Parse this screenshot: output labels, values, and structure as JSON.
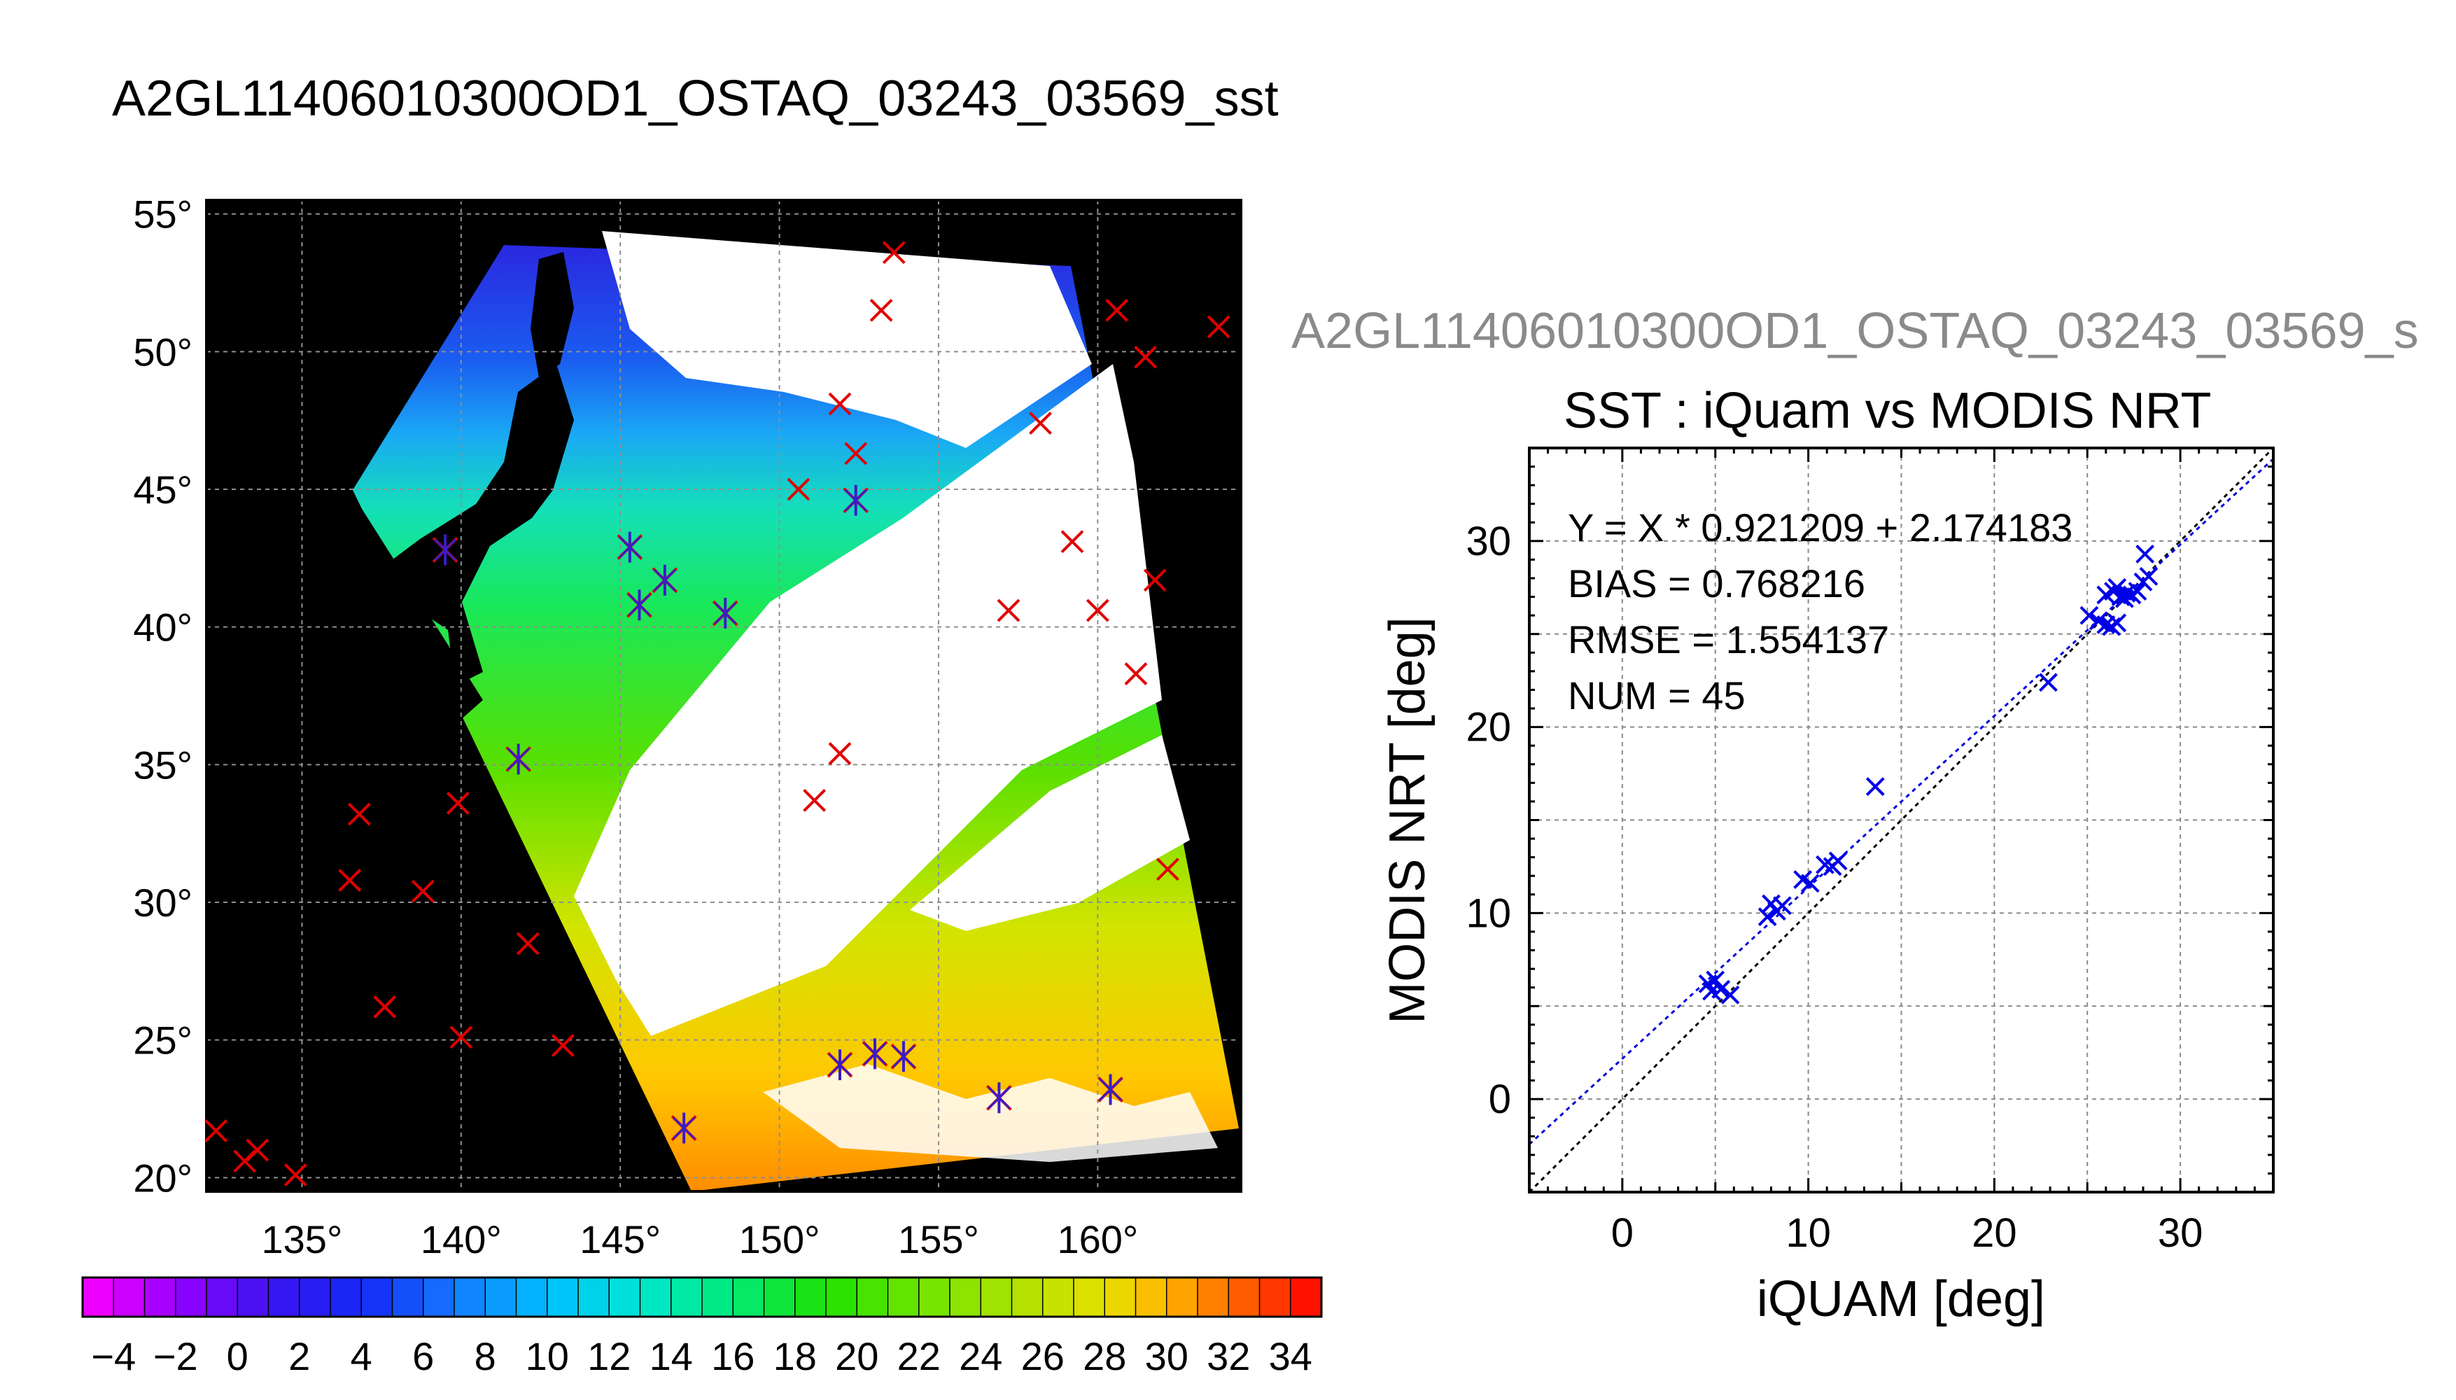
{
  "page_title": "A2GL11406010300OD1_OSTAQ_03243_03569_sst",
  "ghost_title": "A2GL11406010300OD1_OSTAQ_03243_03569_s",
  "chart_data": [
    {
      "type": "map",
      "title": "A2GL11406010300OD1_OSTAQ_03243_03569_sst",
      "lon_range": [
        132,
        164.5
      ],
      "lat_range": [
        19.5,
        55.5
      ],
      "lon_ticks": [
        135,
        140,
        145,
        150,
        155,
        160
      ],
      "lat_ticks": [
        20,
        25,
        30,
        35,
        40,
        45,
        50,
        55
      ],
      "lon_tick_labels": [
        "135°",
        "140°",
        "145°",
        "150°",
        "155°",
        "160°"
      ],
      "lat_tick_labels": [
        "20°",
        "25°",
        "30°",
        "35°",
        "40°",
        "45°",
        "50°",
        "55°"
      ],
      "grid": true,
      "matched_points": [
        {
          "lon": 139.5,
          "lat": 42.8
        },
        {
          "lon": 145.3,
          "lat": 42.9
        },
        {
          "lon": 145.6,
          "lat": 40.8
        },
        {
          "lon": 146.4,
          "lat": 41.7
        },
        {
          "lon": 148.3,
          "lat": 40.5
        },
        {
          "lon": 141.8,
          "lat": 35.2
        },
        {
          "lon": 152.4,
          "lat": 44.6
        },
        {
          "lon": 147.0,
          "lat": 21.8
        },
        {
          "lon": 151.9,
          "lat": 24.1
        },
        {
          "lon": 153.0,
          "lat": 24.5
        },
        {
          "lon": 153.9,
          "lat": 24.4
        },
        {
          "lon": 156.9,
          "lat": 22.9
        },
        {
          "lon": 160.4,
          "lat": 23.2
        }
      ],
      "unmatched_points": [
        {
          "lon": 153.6,
          "lat": 53.6
        },
        {
          "lon": 153.2,
          "lat": 51.5
        },
        {
          "lon": 160.6,
          "lat": 51.5
        },
        {
          "lon": 163.8,
          "lat": 50.9
        },
        {
          "lon": 161.5,
          "lat": 49.8
        },
        {
          "lon": 151.9,
          "lat": 48.1
        },
        {
          "lon": 158.2,
          "lat": 47.4
        },
        {
          "lon": 152.4,
          "lat": 46.3
        },
        {
          "lon": 150.6,
          "lat": 45.0
        },
        {
          "lon": 159.2,
          "lat": 43.1
        },
        {
          "lon": 161.8,
          "lat": 41.7
        },
        {
          "lon": 157.2,
          "lat": 40.6
        },
        {
          "lon": 160.0,
          "lat": 40.6
        },
        {
          "lon": 161.2,
          "lat": 38.3
        },
        {
          "lon": 151.9,
          "lat": 35.4
        },
        {
          "lon": 151.1,
          "lat": 33.7
        },
        {
          "lon": 136.8,
          "lat": 33.2
        },
        {
          "lon": 139.9,
          "lat": 33.6
        },
        {
          "lon": 162.2,
          "lat": 31.2
        },
        {
          "lon": 136.5,
          "lat": 30.8
        },
        {
          "lon": 138.8,
          "lat": 30.4
        },
        {
          "lon": 142.1,
          "lat": 28.5
        },
        {
          "lon": 137.6,
          "lat": 26.2
        },
        {
          "lon": 140.0,
          "lat": 25.1
        },
        {
          "lon": 143.2,
          "lat": 24.8
        },
        {
          "lon": 132.3,
          "lat": 21.7
        },
        {
          "lon": 133.6,
          "lat": 21.0
        },
        {
          "lon": 133.2,
          "lat": 20.6
        },
        {
          "lon": 134.8,
          "lat": 20.1
        }
      ]
    },
    {
      "type": "colorbar",
      "min": -5,
      "max": 35,
      "step": 2,
      "tick_labels": [
        "−4",
        "−2",
        "0",
        "2",
        "4",
        "6",
        "8",
        "10",
        "12",
        "14",
        "16",
        "18",
        "20",
        "22",
        "24",
        "26",
        "28",
        "30",
        "32",
        "34"
      ]
    },
    {
      "type": "scatter",
      "title": "SST : iQuam vs MODIS NRT",
      "xlabel": "iQUAM [deg]",
      "ylabel": "MODIS NRT [deg]",
      "xlim": [
        -5,
        35
      ],
      "ylim": [
        -5,
        35
      ],
      "xticks": [
        0,
        10,
        20,
        30
      ],
      "yticks": [
        0,
        10,
        20,
        30
      ],
      "grid": true,
      "stats": [
        "Y = X * 0.921209 + 2.174183",
        "BIAS = 0.768216",
        "RMSE = 1.554137",
        "NUM = 45"
      ],
      "fit": {
        "slope": 0.921209,
        "intercept": 2.174183
      },
      "points": [
        [
          4.6,
          6.2
        ],
        [
          4.8,
          5.8
        ],
        [
          5.0,
          6.4
        ],
        [
          5.3,
          5.9
        ],
        [
          5.8,
          5.6
        ],
        [
          7.8,
          9.8
        ],
        [
          8.0,
          10.5
        ],
        [
          8.3,
          10.1
        ],
        [
          8.6,
          10.4
        ],
        [
          9.7,
          11.8
        ],
        [
          10.1,
          11.6
        ],
        [
          10.9,
          12.6
        ],
        [
          11.3,
          12.5
        ],
        [
          11.6,
          12.8
        ],
        [
          13.6,
          16.8
        ],
        [
          22.9,
          22.4
        ],
        [
          25.1,
          26.0
        ],
        [
          25.6,
          25.7
        ],
        [
          26.0,
          25.5
        ],
        [
          26.3,
          25.4
        ],
        [
          26.6,
          25.6
        ],
        [
          26.0,
          27.1
        ],
        [
          26.4,
          27.3
        ],
        [
          26.8,
          27.0
        ],
        [
          27.1,
          27.2
        ],
        [
          27.4,
          27.1
        ],
        [
          27.7,
          27.3
        ],
        [
          26.6,
          27.5
        ],
        [
          27.0,
          26.9
        ],
        [
          28.0,
          27.8
        ],
        [
          28.3,
          28.1
        ],
        [
          28.1,
          29.3
        ]
      ]
    }
  ]
}
